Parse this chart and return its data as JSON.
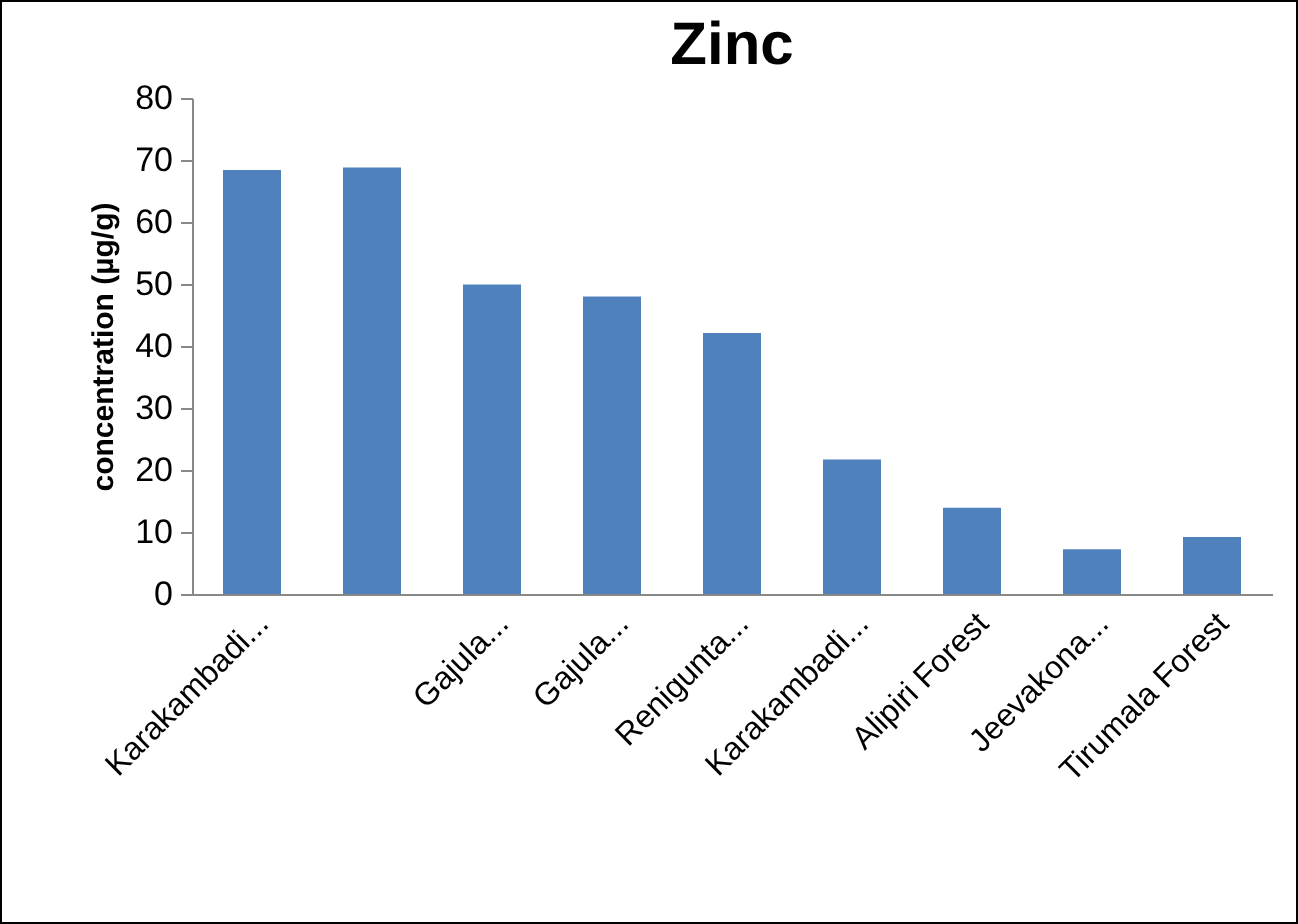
{
  "chart_data": {
    "type": "bar",
    "title": "Zinc",
    "ylabel": "concentration (µg/g)",
    "categories": [
      "Karakambadi...",
      null,
      "Gajula...",
      "Gajula...",
      "Renigunta...",
      "Karakambadi...",
      "Alipiri Forest",
      "Jeevakona...",
      "Tirumala Forest"
    ],
    "values": [
      68.4,
      68.8,
      49.9,
      48.0,
      42.1,
      21.7,
      13.9,
      7.2,
      9.2
    ],
    "color": "#4f81bd",
    "ylim": [
      0,
      80
    ],
    "yticks": [
      0,
      10,
      20,
      30,
      40,
      50,
      60,
      70,
      80
    ],
    "grid": false
  }
}
